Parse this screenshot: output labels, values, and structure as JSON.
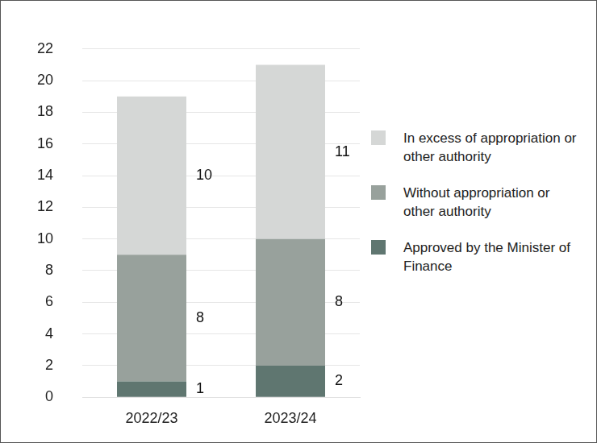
{
  "chart_data": {
    "type": "bar",
    "stacked": true,
    "data_labels": true,
    "grid": true,
    "legend": "right",
    "categories": [
      "2022/23",
      "2023/24"
    ],
    "series": [
      {
        "name": "Approved by the Minister of Finance",
        "color": "#5f7670",
        "values": [
          1,
          2
        ]
      },
      {
        "name": "Without appropriation or other authority",
        "color": "#98a19c",
        "values": [
          8,
          8
        ]
      },
      {
        "name": "In excess of appropriation or other authority",
        "color": "#d5d7d6",
        "values": [
          10,
          11
        ]
      }
    ],
    "ylim": [
      0,
      22
    ],
    "yticks": [
      0,
      2,
      4,
      6,
      8,
      10,
      12,
      14,
      16,
      18,
      20,
      22
    ]
  }
}
